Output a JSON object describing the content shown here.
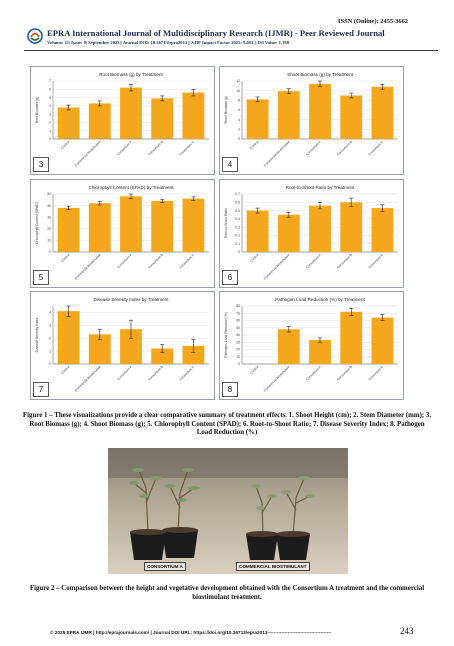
{
  "header": {
    "issn": "ISSN (Online): 2455-3662",
    "journal": "EPRA International Journal of Multidisciplinary Research (IJMR) - Peer Reviewed Journal",
    "meta": "Volume: 11| Issue: 9| September 2025|| Journal DOI: 10.36713/epra2013 || SJIF Impact Factor 2025: 8.691 || ISI Value: 1.188",
    "logo_colors": [
      "#1b5aa8",
      "#d84315",
      "#2e7d32"
    ]
  },
  "panels": [
    {
      "num": "3",
      "title": "Root Biomass (g) by Treatment",
      "ylabel": "Root Biomass (g)",
      "ymax": 7,
      "yticks": [
        0,
        1,
        2,
        3,
        4,
        5,
        6,
        7
      ],
      "values": [
        3.8,
        4.3,
        6.2,
        4.9,
        5.6
      ],
      "err": [
        0.3,
        0.3,
        0.4,
        0.3,
        0.4
      ]
    },
    {
      "num": "4",
      "title": "Shoot Biomass (g) by Treatment",
      "ylabel": "Shoot Biomass (g)",
      "ymax": 12,
      "yticks": [
        0,
        2,
        4,
        6,
        8,
        10,
        12
      ],
      "values": [
        8.2,
        9.9,
        11.4,
        9.0,
        10.8
      ],
      "err": [
        0.5,
        0.5,
        0.6,
        0.5,
        0.5
      ]
    },
    {
      "num": "5",
      "title": "Chlorophyll Content (SPAD) by Treatment",
      "ylabel": "Chlorophyll Content (SPAD)",
      "ymax": 50,
      "yticks": [
        0,
        10,
        20,
        30,
        40,
        50
      ],
      "values": [
        38,
        42,
        48,
        44,
        46
      ],
      "err": [
        1.5,
        1.5,
        2,
        1.5,
        1.5
      ]
    },
    {
      "num": "6",
      "title": "Root-to-Shoot Ratio by Treatment",
      "ylabel": "Root-to-Shoot Ratio",
      "ymax": 0.7,
      "yticks": [
        0,
        0.1,
        0.2,
        0.3,
        0.4,
        0.5,
        0.6,
        0.7
      ],
      "values": [
        0.5,
        0.45,
        0.56,
        0.6,
        0.53
      ],
      "err": [
        0.03,
        0.03,
        0.04,
        0.05,
        0.04
      ]
    },
    {
      "num": "7",
      "title": "Disease Severity Index by Treatment",
      "ylabel": "Disease Severity Index",
      "ymax": 4.5,
      "yticks": [
        0,
        1,
        2,
        3,
        4
      ],
      "values": [
        4.1,
        2.3,
        2.7,
        1.2,
        1.4
      ],
      "err": [
        0.4,
        0.4,
        0.7,
        0.3,
        0.5
      ]
    },
    {
      "num": "8",
      "title": "Pathogen Load Reduction (%) by Treatment",
      "ylabel": "Pathogen Load Reduction (%)",
      "ymax": 80,
      "yticks": [
        0,
        10,
        20,
        30,
        40,
        50,
        60,
        70,
        80
      ],
      "values": [
        0,
        48,
        33,
        72,
        64
      ],
      "err": [
        0,
        4,
        3,
        5,
        4
      ]
    }
  ],
  "categories": [
    "Control",
    "Commercial Biostimulant",
    "Consortium A",
    "Consortium B",
    "Consortium C"
  ],
  "bar_color": "#f4a61d",
  "caption1": "Figure 1 – These visualizations provide a clear comparative summary of treatment effects. 1. Shoot Height (cm); 2. Stem Diameter (mm); 3. Root Biomass (g); 4. Shoot Biomass (g); 5. Chlorophyll Content (SPAD); 6. Root-to-Shoot Ratio; 7. Disease Severity Index; 8. Pathogen Load Reduction (%)",
  "photo": {
    "label_left": "CONSORTIUM A",
    "label_right": "COMMERCIAL BIOSTIMULANT"
  },
  "caption2": "Figure 2 – Comparison between the height and vegetative development obtained with the Consortium A treatment and the commercial biostimulant treatment.",
  "footer": {
    "text": "© 2025 EPRA IJMR   |   http://eprajournals.com/   |   Journal DOI URL: https://doi.org/10.36713/epra2013-----------------------------------------",
    "page": "243"
  }
}
